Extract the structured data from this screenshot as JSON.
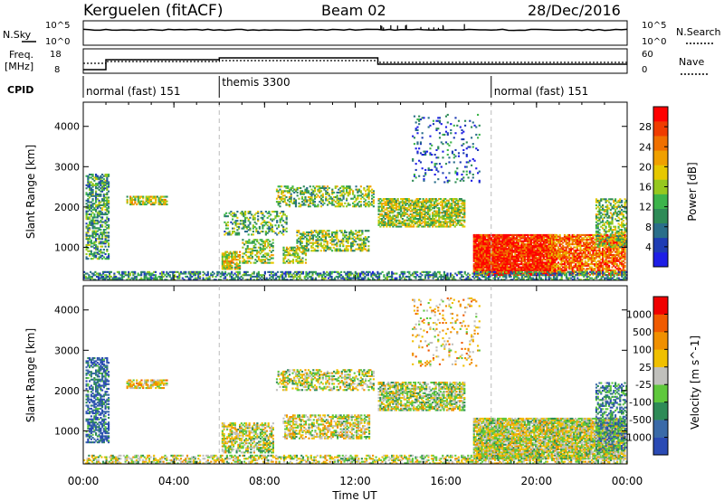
{
  "header": {
    "station": "Kerguelen (fitACF)",
    "beam": "Beam 02",
    "date": "28/Dec/2016"
  },
  "strips": {
    "nsky_label": "N.Sky",
    "nsearch_label": "N.Search",
    "freq_label_1": "Freq.",
    "freq_label_2": "[MHz]",
    "nave_label": "Nave",
    "cpid_label": "CPID",
    "nsky_ticks": [
      "10^5",
      "10^0"
    ],
    "nsearch_ticks": [
      "10^5",
      "10^0"
    ],
    "freq_ticks": [
      "18",
      "8"
    ],
    "nave_ticks": [
      "60",
      "0"
    ],
    "cpid_segments": [
      {
        "label": "normal (fast) 151",
        "start_hour": 0
      },
      {
        "label": "themis 3300",
        "start_hour": 6
      },
      {
        "label": "normal (fast) 151",
        "start_hour": 18
      }
    ]
  },
  "chart_data": [
    {
      "type": "heatmap",
      "quantity": "power",
      "ylabel": "Slant Range [km]",
      "ylim": [
        180,
        4600
      ],
      "yticks": [
        "1000",
        "2000",
        "3000",
        "4000"
      ],
      "xlim_hours": [
        0,
        24
      ],
      "colorbar_label": "Power [dB]",
      "colorbar_ticks": [
        "4",
        "8",
        "12",
        "16",
        "20",
        "24",
        "28"
      ],
      "colorbar_colors": [
        "#1e1ee6",
        "#1e3cb4",
        "#2a6e8a",
        "#2e8b57",
        "#3cb44b",
        "#96c81e",
        "#e6c800",
        "#f0a000",
        "#f07000",
        "#f03c00",
        "#ff0000"
      ],
      "scatter_regions": [
        {
          "t0": 0.1,
          "t1": 1.1,
          "r0": 700,
          "r1": 2800,
          "density": 0.55,
          "mean_level": 0.35
        },
        {
          "t0": 1.9,
          "t1": 3.7,
          "r0": 2050,
          "r1": 2250,
          "density": 0.7,
          "mean_level": 0.55
        },
        {
          "t0": 6.1,
          "t1": 6.9,
          "r0": 450,
          "r1": 900,
          "density": 0.7,
          "mean_level": 0.55
        },
        {
          "t0": 7.0,
          "t1": 8.4,
          "r0": 600,
          "r1": 1200,
          "density": 0.5,
          "mean_level": 0.5
        },
        {
          "t0": 8.8,
          "t1": 9.8,
          "r0": 600,
          "r1": 1000,
          "density": 0.6,
          "mean_level": 0.5
        },
        {
          "t0": 9.4,
          "t1": 12.6,
          "r0": 900,
          "r1": 1400,
          "density": 0.55,
          "mean_level": 0.45
        },
        {
          "t0": 8.5,
          "t1": 12.8,
          "r0": 2000,
          "r1": 2500,
          "density": 0.45,
          "mean_level": 0.45
        },
        {
          "t0": 6.2,
          "t1": 9.0,
          "r0": 1300,
          "r1": 1900,
          "density": 0.35,
          "mean_level": 0.4
        },
        {
          "t0": 13.0,
          "t1": 16.8,
          "r0": 1500,
          "r1": 2200,
          "density": 0.7,
          "mean_level": 0.5
        },
        {
          "t0": 14.5,
          "t1": 17.5,
          "r0": 2600,
          "r1": 4300,
          "density": 0.12,
          "mean_level": 0.2
        },
        {
          "t0": 17.2,
          "t1": 20.8,
          "r0": 300,
          "r1": 1300,
          "density": 0.95,
          "mean_level": 0.92
        },
        {
          "t0": 20.5,
          "t1": 23.9,
          "r0": 300,
          "r1": 1300,
          "density": 0.75,
          "mean_level": 0.78
        },
        {
          "t0": 22.6,
          "t1": 24.0,
          "r0": 1000,
          "r1": 2200,
          "density": 0.5,
          "mean_level": 0.45
        },
        {
          "t0": 0.0,
          "t1": 24.0,
          "r0": 180,
          "r1": 380,
          "density": 0.55,
          "mean_level": 0.3
        }
      ]
    },
    {
      "type": "heatmap",
      "quantity": "velocity",
      "ylabel": "Slant Range [km]",
      "ylim": [
        180,
        4600
      ],
      "yticks": [
        "1000",
        "2000",
        "3000",
        "4000"
      ],
      "xlim_hours": [
        0,
        24
      ],
      "xticks": [
        "00:00",
        "04:00",
        "08:00",
        "12:00",
        "16:00",
        "20:00",
        "00:00"
      ],
      "xlabel": "Time UT",
      "colorbar_label": "Velocity [m s^-1]",
      "colorbar_ticks": [
        "1000",
        "500",
        "100",
        "25",
        "-25",
        "-100",
        "-500",
        "-1000"
      ],
      "colorbar_colors": [
        "#2a4ab4",
        "#3a6aa8",
        "#2e8b57",
        "#5fc83c",
        "#c0c0bc",
        "#f0c000",
        "#f09000",
        "#f05a00",
        "#f00000"
      ],
      "scatter_regions": [
        {
          "t0": 0.1,
          "t1": 1.1,
          "r0": 700,
          "r1": 2800,
          "density": 0.55,
          "mean_level": 0.15
        },
        {
          "t0": 1.9,
          "t1": 3.7,
          "r0": 2050,
          "r1": 2250,
          "density": 0.7,
          "mean_level": 0.6
        },
        {
          "t0": 6.1,
          "t1": 8.4,
          "r0": 450,
          "r1": 1200,
          "density": 0.6,
          "mean_level": 0.5
        },
        {
          "t0": 8.8,
          "t1": 12.6,
          "r0": 800,
          "r1": 1400,
          "density": 0.55,
          "mean_level": 0.52
        },
        {
          "t0": 8.5,
          "t1": 12.8,
          "r0": 2000,
          "r1": 2500,
          "density": 0.45,
          "mean_level": 0.5
        },
        {
          "t0": 13.0,
          "t1": 16.8,
          "r0": 1500,
          "r1": 2200,
          "density": 0.7,
          "mean_level": 0.48
        },
        {
          "t0": 14.5,
          "t1": 17.5,
          "r0": 2600,
          "r1": 4300,
          "density": 0.12,
          "mean_level": 0.6
        },
        {
          "t0": 17.2,
          "t1": 23.9,
          "r0": 300,
          "r1": 1300,
          "density": 0.9,
          "mean_level": 0.5
        },
        {
          "t0": 22.6,
          "t1": 24.0,
          "r0": 500,
          "r1": 2200,
          "density": 0.5,
          "mean_level": 0.25
        },
        {
          "t0": 0.0,
          "t1": 24.0,
          "r0": 180,
          "r1": 380,
          "density": 0.5,
          "mean_level": 0.5
        }
      ]
    }
  ]
}
